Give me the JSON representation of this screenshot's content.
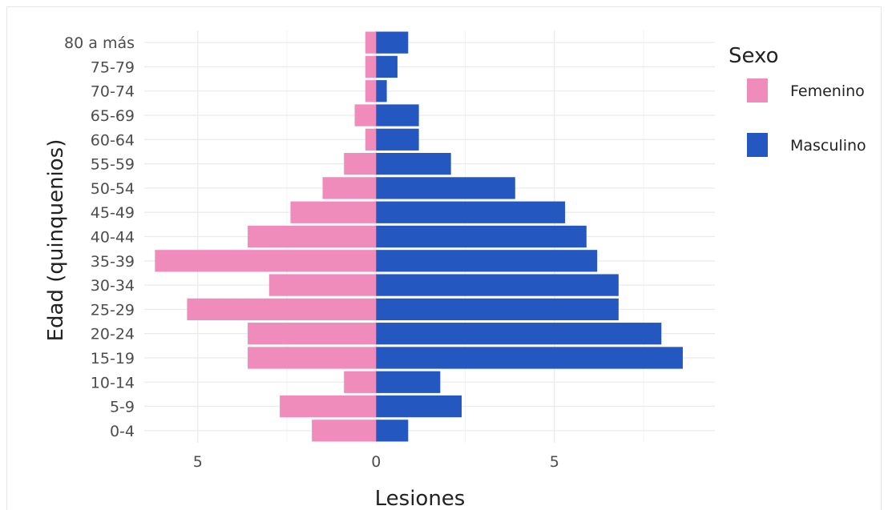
{
  "chart_data": {
    "type": "bar",
    "orientation": "horizontal",
    "layout": "population-pyramid",
    "xlabel": "Lesiones",
    "ylabel": "Edad (quinquenios)",
    "categories": [
      "0-4",
      "5-9",
      "10-14",
      "15-19",
      "20-24",
      "25-29",
      "30-34",
      "35-39",
      "40-44",
      "45-49",
      "50-54",
      "55-59",
      "60-64",
      "65-69",
      "70-74",
      "75-79",
      "80 a más"
    ],
    "xlim": [
      -6.5,
      9.5
    ],
    "x_ticks": [
      -5,
      0,
      5
    ],
    "x_tick_labels": [
      "5",
      "0",
      "5"
    ],
    "grid": true,
    "legend": {
      "title": "Sexo",
      "position": "right"
    },
    "series": [
      {
        "name": "Femenino",
        "color": "#f08cbb",
        "side": "left",
        "values": [
          1.8,
          2.7,
          0.9,
          3.6,
          3.6,
          5.3,
          3.0,
          6.2,
          3.6,
          2.4,
          1.5,
          0.9,
          0.3,
          0.6,
          0.3,
          0.3,
          0.3
        ]
      },
      {
        "name": "Masculino",
        "color": "#2458c0",
        "side": "right",
        "values": [
          0.9,
          2.4,
          1.8,
          8.6,
          8.0,
          6.8,
          6.8,
          6.2,
          5.9,
          5.3,
          3.9,
          2.1,
          1.2,
          1.2,
          0.3,
          0.6,
          0.9
        ]
      }
    ]
  }
}
